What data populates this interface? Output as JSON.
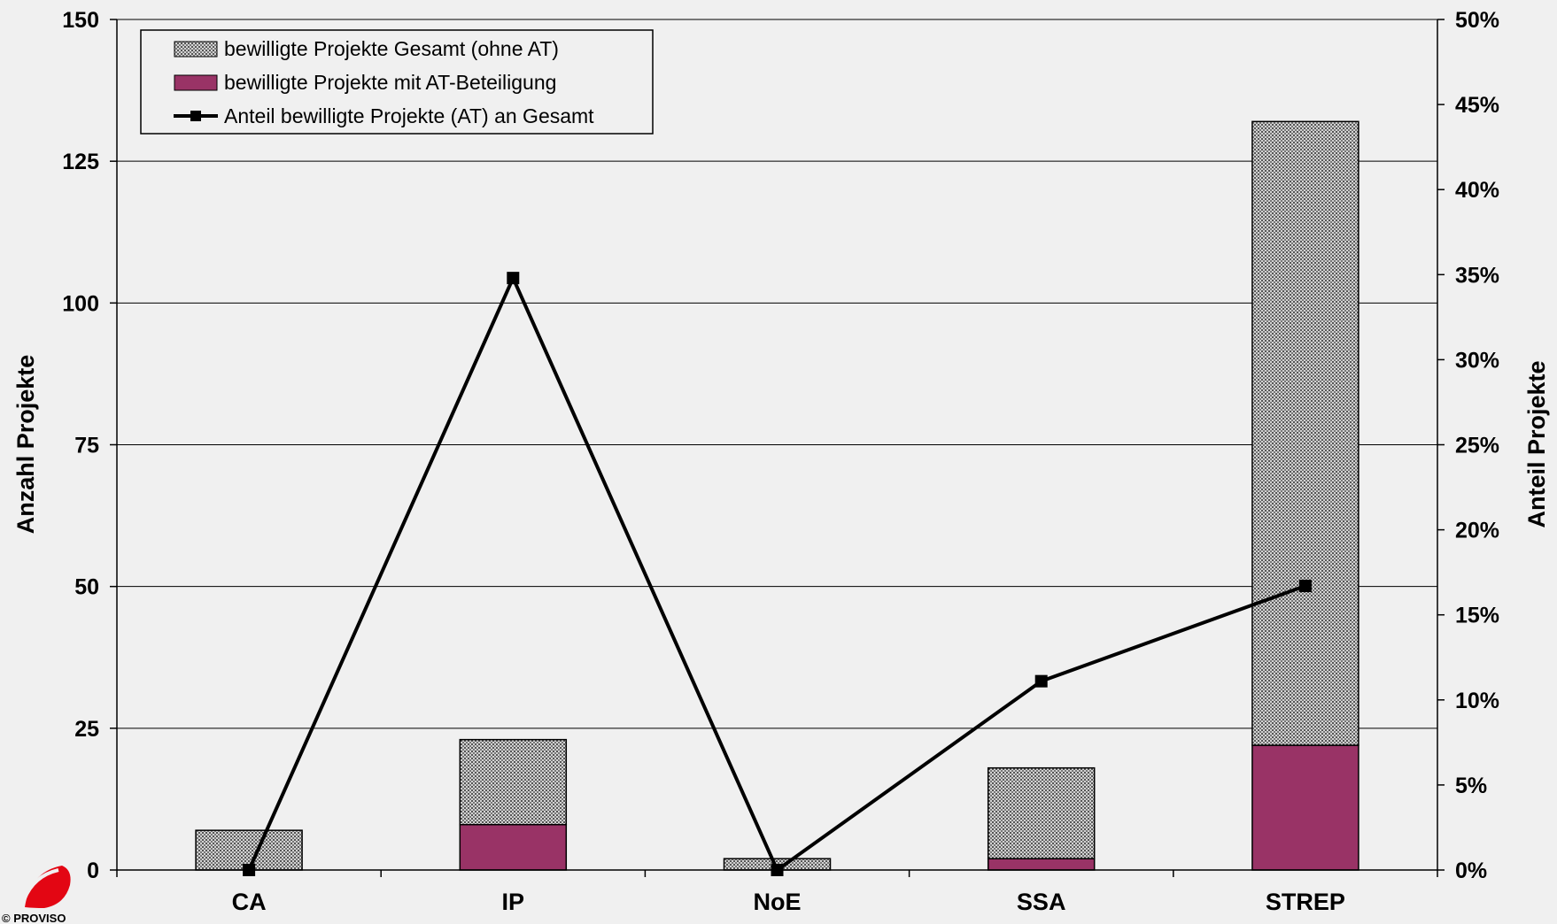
{
  "chart_data": {
    "type": "bar",
    "stacked": true,
    "categories": [
      "CA",
      "IP",
      "NoE",
      "SSA",
      "STREP"
    ],
    "series": [
      {
        "name": "bewilligte Projekte Gesamt (ohne AT)",
        "kind": "bar",
        "axis": "left",
        "values": [
          7,
          15,
          2,
          16,
          110
        ],
        "color": "#a8a8a8",
        "pattern": "dotted-gray"
      },
      {
        "name": "bewilligte Projekte mit AT-Beteiligung",
        "kind": "bar",
        "axis": "left",
        "values": [
          0,
          8,
          0,
          2,
          22
        ],
        "color": "#993366"
      },
      {
        "name": "Anteil bewilligte Projekte (AT) an Gesamt",
        "kind": "line",
        "axis": "right",
        "values": [
          0,
          34.8,
          0,
          11.1,
          16.7
        ],
        "color": "#000000",
        "marker": "square"
      }
    ],
    "ylabel": "Anzahl Projekte",
    "y2label": "Anteil Projekte",
    "ylim": [
      0,
      150
    ],
    "y2lim": [
      0,
      50
    ],
    "yticks": [
      0,
      25,
      50,
      75,
      100,
      125,
      150
    ],
    "y2ticks": [
      "0%",
      "5%",
      "10%",
      "15%",
      "20%",
      "25%",
      "30%",
      "35%",
      "40%",
      "45%",
      "50%"
    ],
    "grid": true,
    "legend_position": "top-left"
  },
  "logo": {
    "text": "© PROVISO",
    "icon": "proviso-logo-icon",
    "color": "#e30613"
  }
}
